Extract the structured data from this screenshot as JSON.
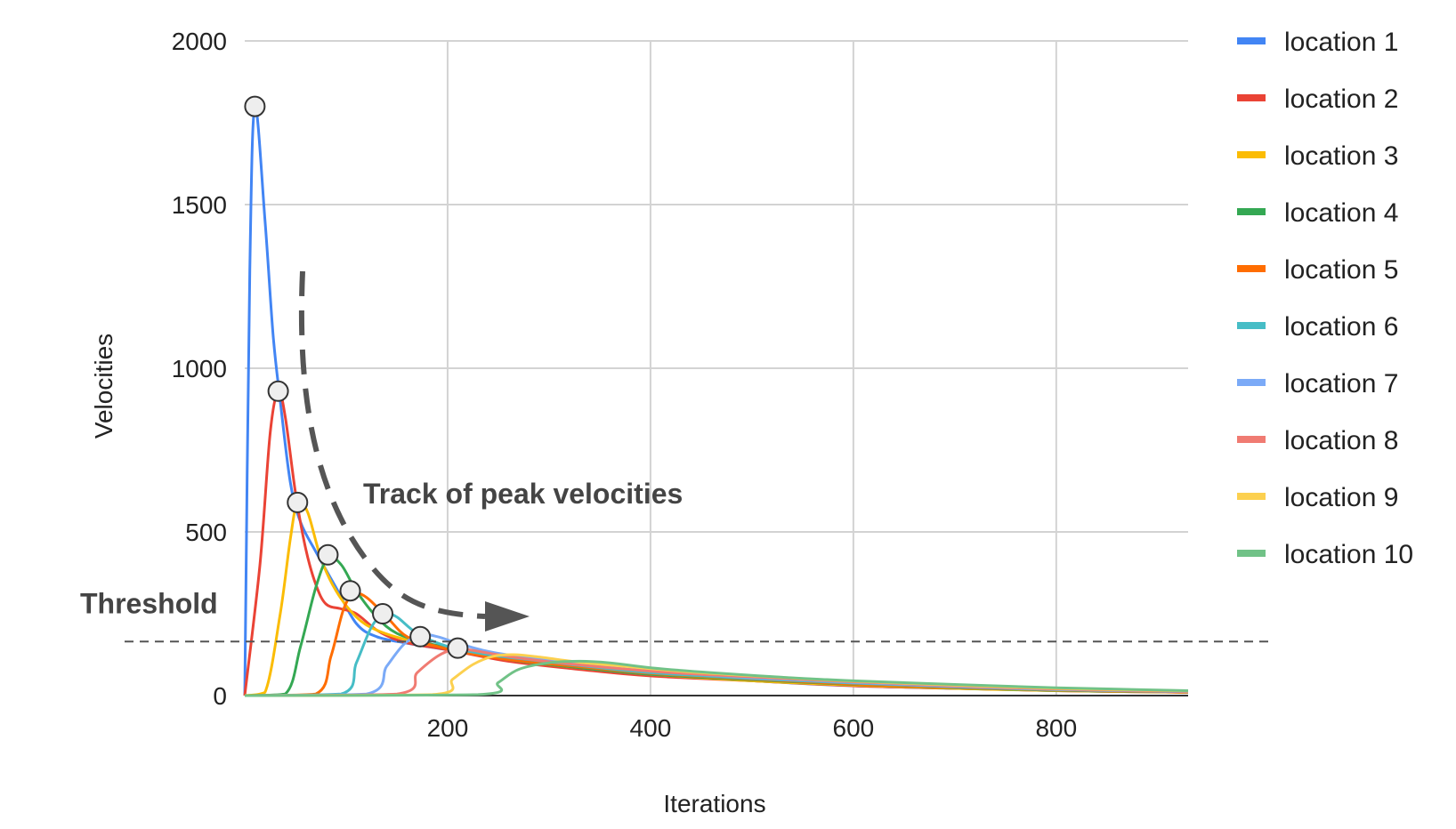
{
  "chart_data": {
    "type": "line",
    "title": "",
    "xlabel": "Iterations",
    "ylabel": "Velocities",
    "xlim": [
      0,
      930
    ],
    "ylim": [
      0,
      2000
    ],
    "x_ticks": [
      200,
      400,
      600,
      800
    ],
    "x_tick_labels": [
      "200",
      "400",
      "600",
      "800"
    ],
    "y_ticks": [
      0,
      500,
      1000,
      1500,
      2000
    ],
    "y_tick_labels": [
      "0",
      "500",
      "1000",
      "1500",
      "2000"
    ],
    "grid": true,
    "legend_position": "right",
    "series": [
      {
        "name": "location 1",
        "color": "#4285F4",
        "points": [
          [
            0,
            0
          ],
          [
            5,
            1300
          ],
          [
            10,
            1800
          ],
          [
            20,
            1450
          ],
          [
            28,
            1100
          ],
          [
            35,
            900
          ],
          [
            45,
            650
          ],
          [
            55,
            530
          ],
          [
            70,
            440
          ],
          [
            90,
            330
          ],
          [
            110,
            220
          ],
          [
            130,
            180
          ],
          [
            160,
            160
          ],
          [
            200,
            140
          ],
          [
            260,
            110
          ],
          [
            330,
            85
          ],
          [
            400,
            65
          ],
          [
            500,
            45
          ],
          [
            600,
            30
          ],
          [
            700,
            22
          ],
          [
            800,
            15
          ],
          [
            930,
            10
          ]
        ]
      },
      {
        "name": "location 2",
        "color": "#EA4335",
        "points": [
          [
            0,
            0
          ],
          [
            15,
            400
          ],
          [
            25,
            800
          ],
          [
            33,
            930
          ],
          [
            40,
            850
          ],
          [
            50,
            620
          ],
          [
            60,
            450
          ],
          [
            70,
            340
          ],
          [
            80,
            280
          ],
          [
            95,
            265
          ],
          [
            110,
            250
          ],
          [
            130,
            200
          ],
          [
            150,
            170
          ],
          [
            170,
            155
          ],
          [
            200,
            140
          ],
          [
            260,
            105
          ],
          [
            330,
            80
          ],
          [
            400,
            60
          ],
          [
            500,
            45
          ],
          [
            600,
            30
          ],
          [
            700,
            22
          ],
          [
            800,
            15
          ],
          [
            930,
            10
          ]
        ]
      },
      {
        "name": "location 3",
        "color": "#FBBC04",
        "points": [
          [
            0,
            0
          ],
          [
            20,
            10
          ],
          [
            35,
            250
          ],
          [
            45,
            480
          ],
          [
            52,
            590
          ],
          [
            62,
            560
          ],
          [
            75,
            420
          ],
          [
            90,
            320
          ],
          [
            110,
            240
          ],
          [
            130,
            200
          ],
          [
            160,
            170
          ],
          [
            200,
            145
          ],
          [
            260,
            110
          ],
          [
            330,
            85
          ],
          [
            400,
            65
          ],
          [
            500,
            45
          ],
          [
            600,
            32
          ],
          [
            700,
            22
          ],
          [
            800,
            15
          ],
          [
            930,
            10
          ]
        ]
      },
      {
        "name": "location 4",
        "color": "#34A853",
        "points": [
          [
            0,
            0
          ],
          [
            40,
            5
          ],
          [
            55,
            150
          ],
          [
            70,
            330
          ],
          [
            82,
            420
          ],
          [
            95,
            400
          ],
          [
            110,
            320
          ],
          [
            130,
            240
          ],
          [
            150,
            190
          ],
          [
            180,
            160
          ],
          [
            210,
            140
          ],
          [
            260,
            110
          ],
          [
            330,
            85
          ],
          [
            400,
            65
          ],
          [
            500,
            48
          ],
          [
            600,
            34
          ],
          [
            700,
            24
          ],
          [
            800,
            16
          ],
          [
            930,
            10
          ]
        ]
      },
      {
        "name": "location 5",
        "color": "#FF6D01",
        "points": [
          [
            0,
            0
          ],
          [
            70,
            5
          ],
          [
            85,
            120
          ],
          [
            97,
            260
          ],
          [
            107,
            310
          ],
          [
            120,
            300
          ],
          [
            140,
            240
          ],
          [
            160,
            180
          ],
          [
            190,
            150
          ],
          [
            220,
            130
          ],
          [
            260,
            110
          ],
          [
            330,
            88
          ],
          [
            400,
            68
          ],
          [
            500,
            50
          ],
          [
            600,
            35
          ],
          [
            700,
            25
          ],
          [
            800,
            17
          ],
          [
            930,
            10
          ]
        ]
      },
      {
        "name": "location 6",
        "color": "#46BDC6",
        "points": [
          [
            0,
            0
          ],
          [
            95,
            5
          ],
          [
            110,
            100
          ],
          [
            125,
            210
          ],
          [
            138,
            250
          ],
          [
            150,
            240
          ],
          [
            170,
            190
          ],
          [
            200,
            150
          ],
          [
            240,
            125
          ],
          [
            280,
            110
          ],
          [
            330,
            92
          ],
          [
            400,
            70
          ],
          [
            500,
            52
          ],
          [
            600,
            38
          ],
          [
            700,
            27
          ],
          [
            800,
            18
          ],
          [
            930,
            12
          ]
        ]
      },
      {
        "name": "location 7",
        "color": "#7BAAF7",
        "points": [
          [
            0,
            0
          ],
          [
            120,
            5
          ],
          [
            140,
            90
          ],
          [
            158,
            160
          ],
          [
            175,
            185
          ],
          [
            190,
            180
          ],
          [
            210,
            160
          ],
          [
            240,
            135
          ],
          [
            280,
            115
          ],
          [
            330,
            95
          ],
          [
            400,
            75
          ],
          [
            500,
            55
          ],
          [
            600,
            40
          ],
          [
            700,
            28
          ],
          [
            800,
            19
          ],
          [
            930,
            12
          ]
        ]
      },
      {
        "name": "location 8",
        "color": "#F07B72",
        "points": [
          [
            0,
            0
          ],
          [
            150,
            5
          ],
          [
            170,
            70
          ],
          [
            190,
            120
          ],
          [
            205,
            140
          ],
          [
            220,
            140
          ],
          [
            240,
            130
          ],
          [
            270,
            115
          ],
          [
            310,
            100
          ],
          [
            360,
            85
          ],
          [
            420,
            70
          ],
          [
            500,
            57
          ],
          [
            600,
            42
          ],
          [
            700,
            30
          ],
          [
            800,
            20
          ],
          [
            930,
            13
          ]
        ]
      },
      {
        "name": "location 9",
        "color": "#FCD04F",
        "points": [
          [
            0,
            0
          ],
          [
            185,
            3
          ],
          [
            205,
            50
          ],
          [
            225,
            95
          ],
          [
            245,
            120
          ],
          [
            265,
            125
          ],
          [
            290,
            118
          ],
          [
            330,
            102
          ],
          [
            380,
            88
          ],
          [
            440,
            72
          ],
          [
            520,
            57
          ],
          [
            600,
            44
          ],
          [
            700,
            32
          ],
          [
            800,
            22
          ],
          [
            930,
            14
          ]
        ]
      },
      {
        "name": "location 10",
        "color": "#71C287",
        "points": [
          [
            0,
            0
          ],
          [
            230,
            3
          ],
          [
            250,
            40
          ],
          [
            270,
            80
          ],
          [
            300,
            100
          ],
          [
            330,
            105
          ],
          [
            360,
            100
          ],
          [
            400,
            85
          ],
          [
            460,
            70
          ],
          [
            530,
            56
          ],
          [
            600,
            45
          ],
          [
            700,
            34
          ],
          [
            800,
            24
          ],
          [
            930,
            15
          ]
        ]
      }
    ],
    "peak_markers": [
      [
        10,
        1800
      ],
      [
        33,
        930
      ],
      [
        52,
        590
      ],
      [
        82,
        430
      ],
      [
        104,
        320
      ],
      [
        136,
        250
      ],
      [
        173,
        180
      ],
      [
        210,
        145
      ]
    ],
    "threshold": {
      "label": "Threshold",
      "y": 165
    },
    "annotation": {
      "text": "Track of peak velocities"
    }
  }
}
